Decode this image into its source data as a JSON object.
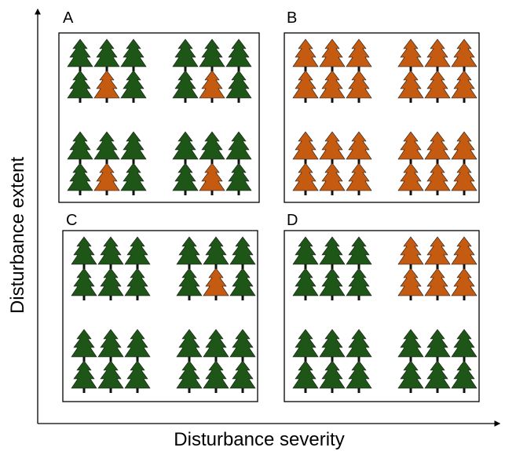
{
  "panels": [
    {
      "label": "A"
    },
    {
      "label": "B"
    },
    {
      "label": "C"
    },
    {
      "label": "D"
    }
  ],
  "axes": {
    "x_label": "Disturbance severity",
    "y_label": "Disturbance extent"
  }
}
